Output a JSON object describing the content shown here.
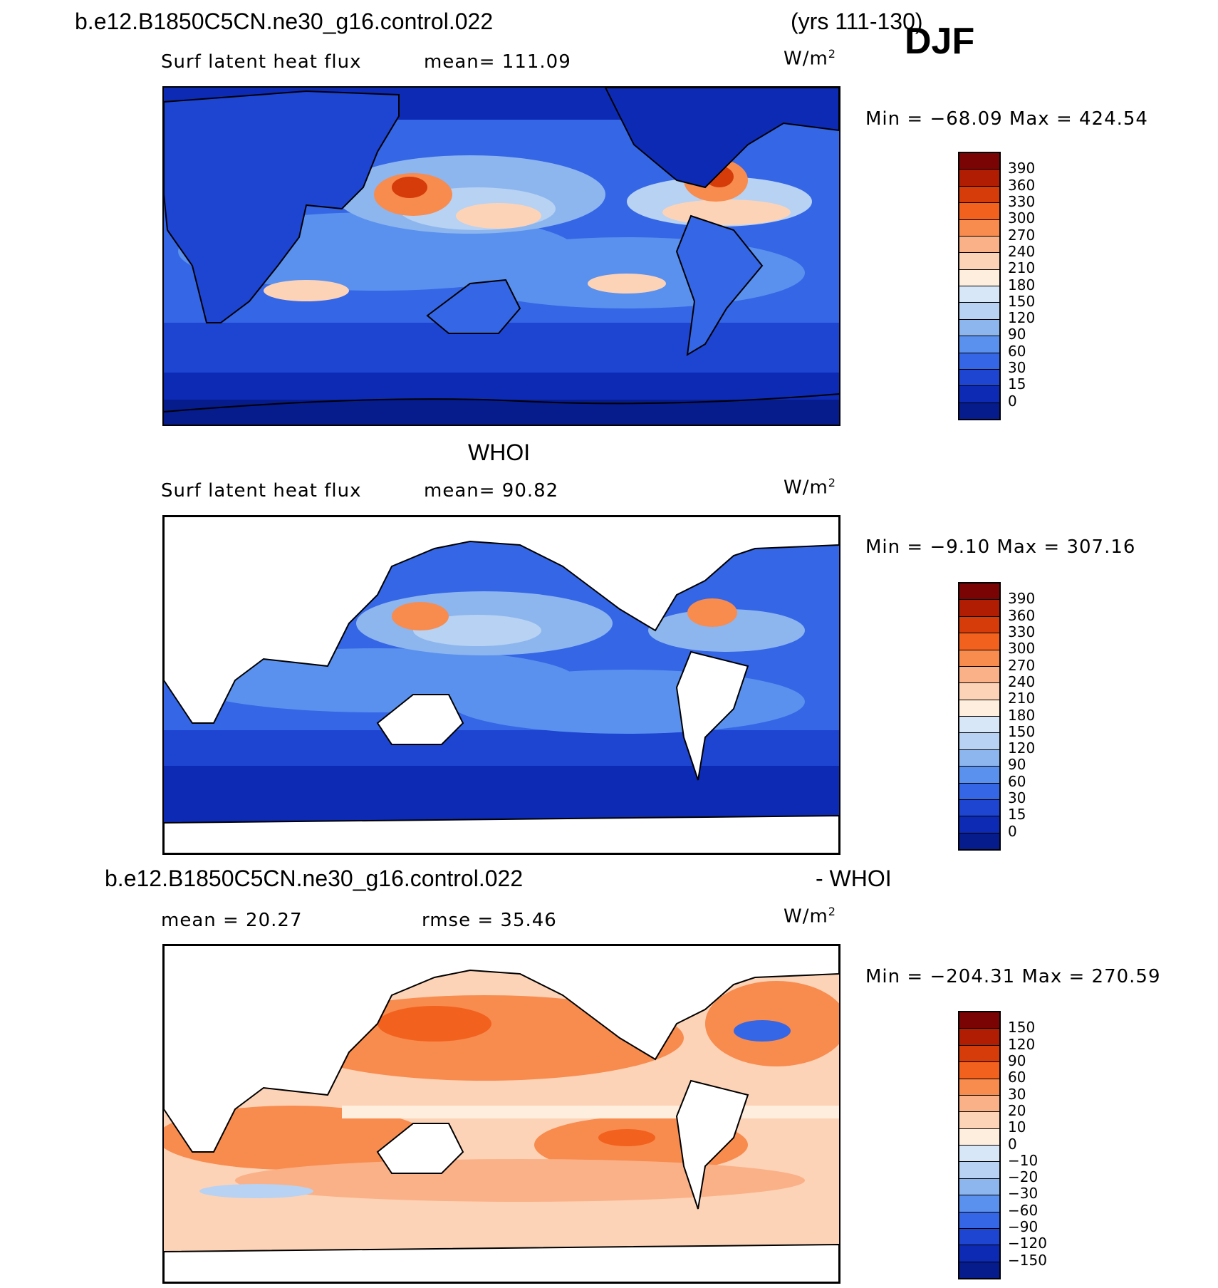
{
  "header": {
    "case_name": "b.e12.B1850C5CN.ne30_g16.control.022",
    "years": "(yrs 111-130)",
    "season": "DJF"
  },
  "panels": [
    {
      "subtitle": "",
      "field": "Surf latent heat flux",
      "stat_text": "mean=  111.09",
      "units_base": "W/m",
      "units_exp": "2",
      "range_text": "Min  =  −68.09  Max  =  424.54",
      "colorbar_labels": [
        "390",
        "360",
        "330",
        "300",
        "270",
        "240",
        "210",
        "180",
        "150",
        "120",
        "90",
        "60",
        "30",
        "15",
        "0"
      ]
    },
    {
      "subtitle": "WHOI",
      "field": "Surf latent heat flux",
      "stat_text": "mean=   90.82",
      "units_base": "W/m",
      "units_exp": "2",
      "range_text": "Min  =   −9.10  Max  =  307.16",
      "colorbar_labels": [
        "390",
        "360",
        "330",
        "300",
        "270",
        "240",
        "210",
        "180",
        "150",
        "120",
        "90",
        "60",
        "30",
        "15",
        "0"
      ]
    },
    {
      "subtitle_left": "b.e12.B1850C5CN.ne30_g16.control.022",
      "subtitle_right": "- WHOI",
      "mean_text": "mean  =   20.27",
      "rmse_text": "rmse  =   35.46",
      "units_base": "W/m",
      "units_exp": "2",
      "range_text": "Min  =  −204.31  Max  =  270.59",
      "colorbar_labels": [
        "150",
        "120",
        "90",
        "60",
        "30",
        "20",
        "10",
        "0",
        "−10",
        "−20",
        "−30",
        "−60",
        "−90",
        "−120",
        "−150"
      ]
    }
  ],
  "colors": {
    "flux_scale": [
      "#7a0403",
      "#b01d02",
      "#d53c0a",
      "#f2611d",
      "#f88b4e",
      "#fab188",
      "#fdd3b7",
      "#fdeede",
      "#d7e7f7",
      "#b7d2f2",
      "#8db6ee",
      "#5a91ee",
      "#3566e6",
      "#1e44d2",
      "#0d2ab4",
      "#061b8c"
    ],
    "diff_scale": [
      "#7a0403",
      "#b01d02",
      "#d53c0a",
      "#f2611d",
      "#f88b4e",
      "#fab188",
      "#fdd3b7",
      "#fdeede",
      "#d7e7f7",
      "#b7d2f2",
      "#8db6ee",
      "#5a91ee",
      "#3566e6",
      "#1e44d2",
      "#0d2ab4",
      "#061b8c"
    ],
    "land_mask": "#ffffff"
  },
  "chart_data": [
    {
      "type": "heatmap",
      "title": "Surf latent heat flux",
      "units": "W/m2",
      "mean": 111.09,
      "min": -68.09,
      "max": 424.54,
      "levels": [
        0,
        15,
        30,
        60,
        90,
        120,
        150,
        180,
        210,
        240,
        270,
        300,
        330,
        360,
        390
      ]
    },
    {
      "type": "heatmap",
      "title": "WHOI Surf latent heat flux",
      "units": "W/m2",
      "mean": 90.82,
      "min": -9.1,
      "max": 307.16,
      "levels": [
        0,
        15,
        30,
        60,
        90,
        120,
        150,
        180,
        210,
        240,
        270,
        300,
        330,
        360,
        390
      ]
    },
    {
      "type": "heatmap",
      "title": "b.e12.B1850C5CN.ne30_g16.control.022 - WHOI",
      "units": "W/m2",
      "mean": 20.27,
      "rmse": 35.46,
      "min": -204.31,
      "max": 270.59,
      "levels": [
        -150,
        -120,
        -90,
        -60,
        -30,
        -20,
        -10,
        0,
        10,
        20,
        30,
        60,
        90,
        120,
        150
      ]
    }
  ]
}
